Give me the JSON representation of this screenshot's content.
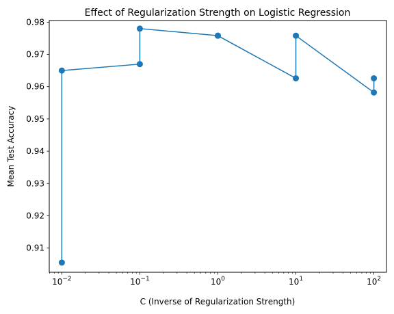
{
  "chart_data": {
    "type": "line",
    "title": "Effect of Regularization Strength on Logistic Regression",
    "xlabel": "C (Inverse of Regularization Strength)",
    "ylabel": "Mean Test Accuracy",
    "x_scale": "log",
    "xlim": [
      0.0069,
      145
    ],
    "ylim": [
      0.9025,
      0.9805
    ],
    "grid": false,
    "color": "#1f77b4",
    "x_ticks": [
      {
        "value": 0.01,
        "base": "10",
        "exp": "−2"
      },
      {
        "value": 0.1,
        "base": "10",
        "exp": "−1"
      },
      {
        "value": 1,
        "base": "10",
        "exp": "0"
      },
      {
        "value": 10,
        "base": "10",
        "exp": "1"
      },
      {
        "value": 100,
        "base": "10",
        "exp": "2"
      }
    ],
    "y_ticks": [
      "0.91",
      "0.92",
      "0.93",
      "0.94",
      "0.95",
      "0.96",
      "0.97",
      "0.98"
    ],
    "series": [
      {
        "points": [
          {
            "x": 0.01,
            "y": 0.9055
          },
          {
            "x": 0.01,
            "y": 0.965
          },
          {
            "x": 0.1,
            "y": 0.967
          },
          {
            "x": 0.1,
            "y": 0.978
          },
          {
            "x": 1,
            "y": 0.9758
          },
          {
            "x": 1,
            "y": 0.9758
          },
          {
            "x": 10,
            "y": 0.9626
          },
          {
            "x": 10,
            "y": 0.9758
          },
          {
            "x": 100,
            "y": 0.9582
          },
          {
            "x": 100,
            "y": 0.9626
          }
        ]
      }
    ]
  }
}
